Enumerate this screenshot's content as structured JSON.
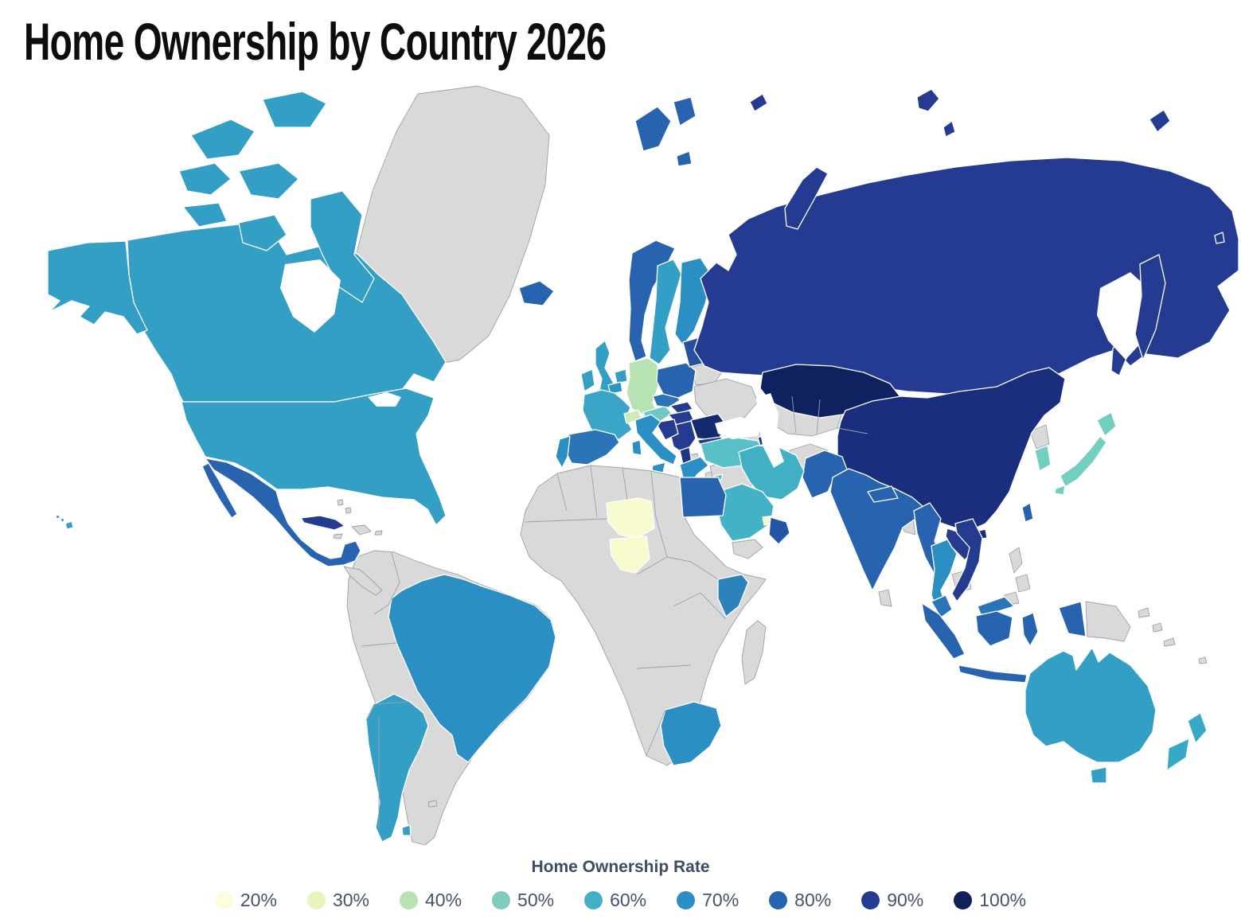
{
  "title": "Home Ownership by Country 2026",
  "legend": {
    "title": "Home Ownership Rate",
    "items": [
      {
        "label": "20%",
        "color": "#FCFDDC"
      },
      {
        "label": "30%",
        "color": "#E6F4BE"
      },
      {
        "label": "40%",
        "color": "#B7E2B2"
      },
      {
        "label": "50%",
        "color": "#7FCCBA"
      },
      {
        "label": "60%",
        "color": "#41B0C5"
      },
      {
        "label": "70%",
        "color": "#2B8FC3"
      },
      {
        "label": "80%",
        "color": "#2763AE"
      },
      {
        "label": "90%",
        "color": "#243B8F"
      },
      {
        "label": "100%",
        "color": "#0E2058"
      }
    ]
  },
  "chart_data": {
    "type": "choropleth-map",
    "title": "Home Ownership by Country 2026",
    "legend_title": "Home Ownership Rate",
    "unit": "%",
    "scale_min": 20,
    "scale_max": 100,
    "no_data_color": "#D9D9D9",
    "regions": [
      {
        "id": "usa",
        "name": "United States",
        "rate": 65,
        "color": "#339FC4"
      },
      {
        "id": "canada",
        "name": "Canada",
        "rate": 66,
        "color": "#339FC4"
      },
      {
        "id": "mexico",
        "name": "Mexico",
        "rate": 80,
        "color": "#2763AE"
      },
      {
        "id": "cuba",
        "name": "Cuba",
        "rate": 90,
        "color": "#243B8F"
      },
      {
        "id": "brazil",
        "name": "Brazil",
        "rate": 72,
        "color": "#2B8FC3"
      },
      {
        "id": "argentina",
        "name": "Argentina",
        "rate": 66,
        "color": "#339FC4"
      },
      {
        "id": "iceland",
        "name": "Iceland",
        "rate": 80,
        "color": "#2763AE"
      },
      {
        "id": "uk",
        "name": "United Kingdom",
        "rate": 65,
        "color": "#339FC4"
      },
      {
        "id": "ireland",
        "name": "Ireland",
        "rate": 68,
        "color": "#33A0C4"
      },
      {
        "id": "norway",
        "name": "Norway",
        "rate": 80,
        "color": "#2763AE"
      },
      {
        "id": "svalbard",
        "name": "Svalbard",
        "rate": 80,
        "color": "#2763AE"
      },
      {
        "id": "sweden",
        "name": "Sweden",
        "rate": 65,
        "color": "#339FC4"
      },
      {
        "id": "finland",
        "name": "Finland",
        "rate": 70,
        "color": "#2B8FC3"
      },
      {
        "id": "denmark",
        "name": "Denmark",
        "rate": 52,
        "color": "#7FCCBA"
      },
      {
        "id": "netherlands",
        "name": "Netherlands",
        "rate": 65,
        "color": "#339FC4"
      },
      {
        "id": "belgium",
        "name": "Belgium",
        "rate": 68,
        "color": "#2F96C3"
      },
      {
        "id": "france",
        "name": "France",
        "rate": 63,
        "color": "#3AA5C6"
      },
      {
        "id": "germany",
        "name": "Germany",
        "rate": 42,
        "color": "#B7E2B2"
      },
      {
        "id": "switzerland",
        "name": "Switzerland",
        "rate": 36,
        "color": "#CDEBB4"
      },
      {
        "id": "austria",
        "name": "Austria",
        "rate": 52,
        "color": "#6FC9C2"
      },
      {
        "id": "czechia",
        "name": "Czechia",
        "rate": 78,
        "color": "#2B74B8"
      },
      {
        "id": "slovakia",
        "name": "Slovakia",
        "rate": 90,
        "color": "#243B8F"
      },
      {
        "id": "hungary",
        "name": "Hungary",
        "rate": 90,
        "color": "#243B8F"
      },
      {
        "id": "poland",
        "name": "Poland",
        "rate": 80,
        "color": "#2763AE"
      },
      {
        "id": "baltics",
        "name": "Baltic States",
        "rate": 88,
        "color": "#2850A0"
      },
      {
        "id": "romania",
        "name": "Romania",
        "rate": 96,
        "color": "#132A6E"
      },
      {
        "id": "bulgaria",
        "name": "Bulgaria",
        "rate": 88,
        "color": "#243B8F"
      },
      {
        "id": "serbia",
        "name": "Serbia & Bosnia",
        "rate": 90,
        "color": "#243B8F"
      },
      {
        "id": "croatia",
        "name": "Croatia",
        "rate": 90,
        "color": "#243B8F"
      },
      {
        "id": "albania",
        "name": "Albania",
        "rate": 92,
        "color": "#1F3484"
      },
      {
        "id": "greece",
        "name": "Greece",
        "rate": 72,
        "color": "#2B8FC3"
      },
      {
        "id": "italy",
        "name": "Italy",
        "rate": 72,
        "color": "#2B8FC3"
      },
      {
        "id": "spain",
        "name": "Spain",
        "rate": 76,
        "color": "#2B74B8"
      },
      {
        "id": "portugal",
        "name": "Portugal",
        "rate": 72,
        "color": "#2B8FC3"
      },
      {
        "id": "turkey",
        "name": "Turkey",
        "rate": 56,
        "color": "#58C1C7"
      },
      {
        "id": "cyprus",
        "name": "Cyprus",
        "rate": 56,
        "color": "#58C1C7"
      },
      {
        "id": "azerbaijan",
        "name": "Azerbaijan",
        "rate": 90,
        "color": "#243B8F"
      },
      {
        "id": "russia",
        "name": "Russia",
        "rate": 90,
        "color": "#253B92"
      },
      {
        "id": "kazakhstan",
        "name": "Kazakhstan",
        "rate": 98,
        "color": "#0F2260"
      },
      {
        "id": "china",
        "name": "China",
        "rate": 94,
        "color": "#1B2E7D"
      },
      {
        "id": "japan",
        "name": "Japan",
        "rate": 52,
        "color": "#72CFC0"
      },
      {
        "id": "south-korea",
        "name": "South Korea",
        "rate": 52,
        "color": "#72CFC0"
      },
      {
        "id": "india",
        "name": "India",
        "rate": 80,
        "color": "#2763AE"
      },
      {
        "id": "pakistan",
        "name": "Pakistan",
        "rate": 80,
        "color": "#2763AE"
      },
      {
        "id": "nepal",
        "name": "Nepal",
        "rate": 80,
        "color": "#2763AE"
      },
      {
        "id": "myanmar",
        "name": "Myanmar",
        "rate": 80,
        "color": "#2763AE"
      },
      {
        "id": "thailand",
        "name": "Thailand",
        "rate": 70,
        "color": "#2B8FC3"
      },
      {
        "id": "laos",
        "name": "Laos",
        "rate": 90,
        "color": "#243B8F"
      },
      {
        "id": "vietnam",
        "name": "Vietnam",
        "rate": 88,
        "color": "#243B8F"
      },
      {
        "id": "malaysia",
        "name": "Malaysia",
        "rate": 75,
        "color": "#2B74B8"
      },
      {
        "id": "indonesia",
        "name": "Indonesia",
        "rate": 80,
        "color": "#2763AE"
      },
      {
        "id": "taiwan",
        "name": "Taiwan",
        "rate": 82,
        "color": "#2763AE"
      },
      {
        "id": "iran",
        "name": "Iran",
        "rate": 60,
        "color": "#41B0C5"
      },
      {
        "id": "saudi-arabia",
        "name": "Saudi Arabia",
        "rate": 60,
        "color": "#44B2C6"
      },
      {
        "id": "uae",
        "name": "United Arab Emirates",
        "rate": 25,
        "color": "#F2F7D0"
      },
      {
        "id": "oman",
        "name": "Oman",
        "rate": 86,
        "color": "#2554A6"
      },
      {
        "id": "egypt",
        "name": "Egypt",
        "rate": 78,
        "color": "#2763AE"
      },
      {
        "id": "niger",
        "name": "Niger",
        "rate": 25,
        "color": "#F6FACC"
      },
      {
        "id": "nigeria",
        "name": "Nigeria",
        "rate": 25,
        "color": "#F6FACC"
      },
      {
        "id": "kenya",
        "name": "Kenya",
        "rate": 75,
        "color": "#2E82BC"
      },
      {
        "id": "south-africa",
        "name": "South Africa",
        "rate": 70,
        "color": "#2B8FC3"
      },
      {
        "id": "australia",
        "name": "Australia",
        "rate": 66,
        "color": "#339FC4"
      },
      {
        "id": "new-zealand",
        "name": "New Zealand",
        "rate": 64,
        "color": "#37A8C6"
      },
      {
        "id": "hawaii",
        "name": "Hawaii (US)",
        "rate": 65,
        "color": "#339FC4"
      }
    ]
  }
}
